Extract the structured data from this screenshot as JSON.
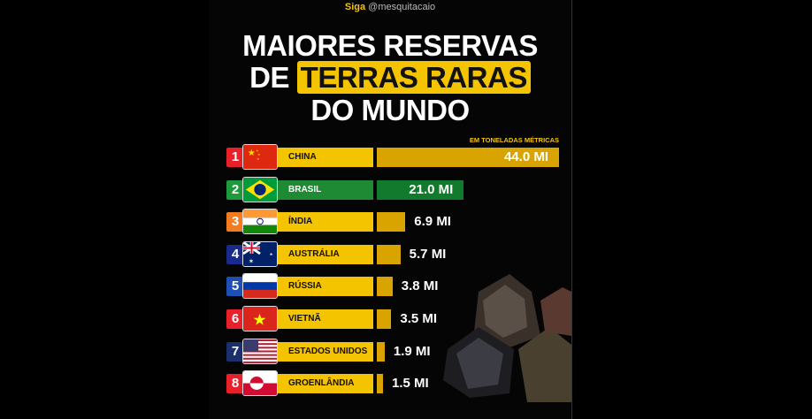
{
  "header": {
    "siga": "Siga",
    "handle": "@mesquitacaio"
  },
  "title": {
    "line1": "MAIORES RESERVAS",
    "line2_prefix": "DE",
    "line2_highlight": "TERRAS RARAS",
    "line3": "DO MUNDO"
  },
  "chart_data": {
    "type": "bar",
    "unit_label": "EM TONELADAS MÉTRICAS",
    "categories": [
      "CHINA",
      "BRASIL",
      "ÍNDIA",
      "AUSTRÁLIA",
      "RÚSSIA",
      "VIETNÃ",
      "ESTADOS UNIDOS",
      "GROENLÂNDIA"
    ],
    "ranks": [
      "1",
      "2",
      "3",
      "4",
      "5",
      "6",
      "7",
      "8"
    ],
    "values": [
      44.0,
      21.0,
      6.9,
      5.7,
      3.8,
      3.5,
      1.9,
      1.5
    ],
    "value_labels": [
      "44.0 MI",
      "21.0 MI",
      "6.9 MI",
      "5.7 MI",
      "3.8 MI",
      "3.5 MI",
      "1.9 MI",
      "1.5 MI"
    ],
    "badge_colors": [
      "#e8202a",
      "#1e9a3c",
      "#f47c20",
      "#1a2a8c",
      "#1f4fb5",
      "#e8202a",
      "#1a2f6b",
      "#e8202a"
    ],
    "bar_color": "#d9a300",
    "highlight_color": "#1e8a34",
    "highlight_bar_color": "#127a2c"
  }
}
